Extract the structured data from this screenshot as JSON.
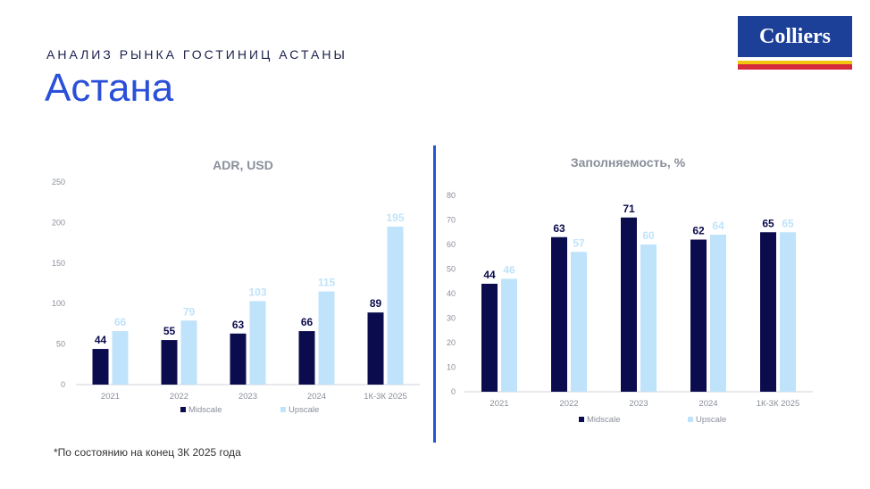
{
  "header": {
    "kicker": "АНАЛИЗ РЫНКА ГОСТИНИЦ АСТАНЫ",
    "title": "Астана",
    "logo_text": "Colliers"
  },
  "footnote": "*По состоянию на конец 3К 2025 года",
  "colors": {
    "midscale": "#0b0c4d",
    "upscale": "#bfe3fa",
    "accent": "#2456d6",
    "logo_bg": "#1c3f97"
  },
  "chart_data": [
    {
      "type": "bar",
      "title": "ADR, USD",
      "categories": [
        "2021",
        "2022",
        "2023",
        "2024",
        "1К-3К 2025"
      ],
      "series": [
        {
          "name": "Midscale",
          "values": [
            44,
            55,
            63,
            66,
            89
          ]
        },
        {
          "name": "Upscale",
          "values": [
            66,
            79,
            103,
            115,
            195
          ]
        }
      ],
      "ylim": [
        0,
        250
      ],
      "yticks": [
        0,
        50,
        100,
        150,
        200,
        250
      ],
      "legend": "bottom"
    },
    {
      "type": "bar",
      "title": "Заполняемость, %",
      "categories": [
        "2021",
        "2022",
        "2023",
        "2024",
        "1К-3К 2025"
      ],
      "series": [
        {
          "name": "Midscale",
          "values": [
            44,
            63,
            71,
            62,
            65
          ]
        },
        {
          "name": "Upscale",
          "values": [
            46,
            57,
            60,
            64,
            65
          ]
        }
      ],
      "ylim": [
        0,
        80
      ],
      "yticks": [
        0,
        10,
        20,
        30,
        40,
        50,
        60,
        70,
        80
      ],
      "legend": "bottom"
    }
  ]
}
